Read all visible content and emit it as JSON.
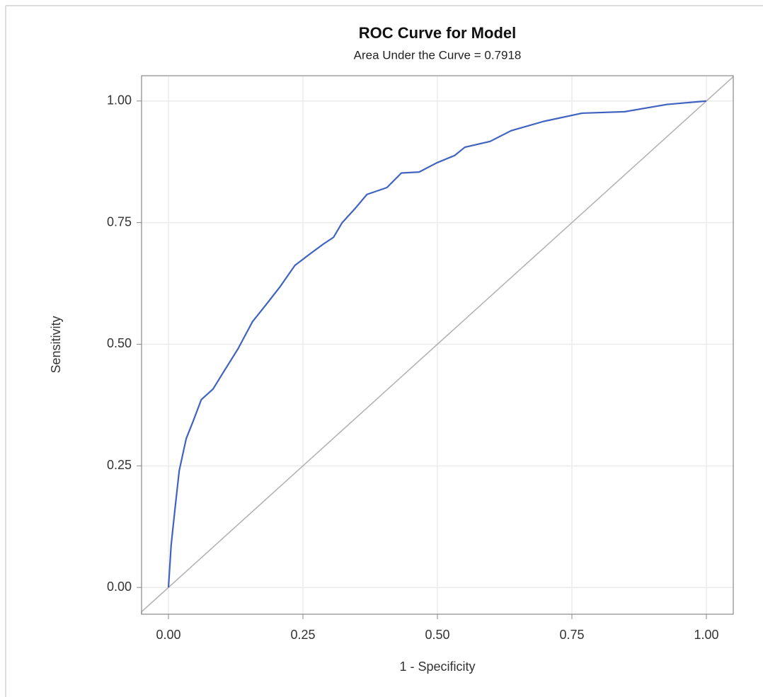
{
  "chart_data": {
    "type": "line",
    "title": "ROC Curve for Model",
    "subtitle": "Area Under the Curve = 0.7918",
    "xlabel": "1 - Specificity",
    "ylabel": "Sensitivity",
    "x": [
      0,
      0.005,
      0.012,
      0.02,
      0.033,
      0.046,
      0.061,
      0.083,
      0.103,
      0.129,
      0.156,
      0.182,
      0.208,
      0.235,
      0.261,
      0.288,
      0.307,
      0.323,
      0.347,
      0.369,
      0.406,
      0.433,
      0.466,
      0.499,
      0.532,
      0.551,
      0.598,
      0.637,
      0.697,
      0.769,
      0.848,
      0.927,
      1
    ],
    "values": [
      0,
      0.087,
      0.16,
      0.24,
      0.306,
      0.342,
      0.386,
      0.408,
      0.444,
      0.49,
      0.546,
      0.582,
      0.619,
      0.662,
      0.684,
      0.706,
      0.72,
      0.75,
      0.779,
      0.808,
      0.822,
      0.852,
      0.854,
      0.873,
      0.888,
      0.905,
      0.917,
      0.939,
      0.958,
      0.975,
      0.978,
      0.993,
      1
    ],
    "color": "#4063c0",
    "xlim": [
      -0.05,
      1.05
    ],
    "ylim": [
      -0.055,
      1.052
    ],
    "xticks": [
      {
        "value": 0,
        "label": "0.00"
      },
      {
        "value": 0.25,
        "label": "0.25"
      },
      {
        "value": 0.5,
        "label": "0.50"
      },
      {
        "value": 0.75,
        "label": "0.75"
      },
      {
        "value": 1,
        "label": "1.00"
      }
    ],
    "yticks": [
      {
        "value": 0,
        "label": "0.00"
      },
      {
        "value": 0.25,
        "label": "0.25"
      },
      {
        "value": 0.5,
        "label": "0.50"
      },
      {
        "value": 0.75,
        "label": "0.75"
      },
      {
        "value": 1,
        "label": "1.00"
      }
    ],
    "grid": true
  }
}
